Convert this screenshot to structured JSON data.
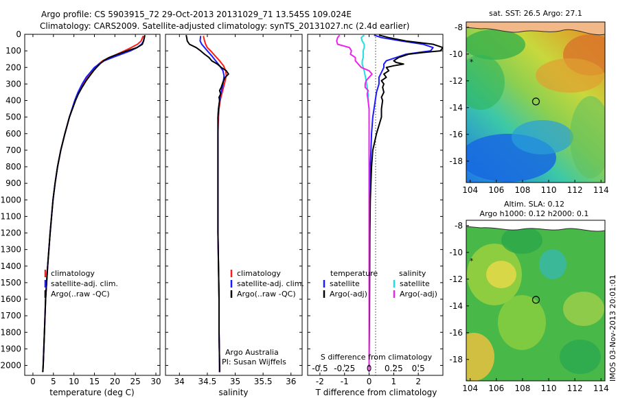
{
  "header": {
    "line1": "Argo profile: CS 5903915_72 29-Oct-2013 20131029_71 13.545S 109.024E",
    "line2": "Climatology: CARS2009. Satellite-adjusted climatology: synTS_20131027.nc (2.4d earlier)"
  },
  "depth_ticks": [
    "0",
    "100",
    "200",
    "300",
    "400",
    "500",
    "600",
    "700",
    "800",
    "900",
    "1000",
    "1100",
    "1200",
    "1300",
    "1400",
    "1500",
    "1600",
    "1700",
    "1800",
    "1900",
    "2000"
  ],
  "colors": {
    "climatology": "#ff1a1a",
    "satellite": "#1a1aff",
    "argo": "#000000",
    "salinity_sat": "#22dddd",
    "salinity_argo": "#ee22ee"
  },
  "chart_data": [
    {
      "type": "line",
      "id": "temperature",
      "xlabel": "temperature (deg C)",
      "ylabel": "depth (m)",
      "xlim": [
        -2,
        31
      ],
      "ylim": [
        2060,
        0
      ],
      "xticks": [
        "0",
        "5",
        "10",
        "15",
        "20",
        "25",
        "30"
      ],
      "legend": {
        "position": "lower-middle",
        "entries": [
          "climatology",
          "satellite-adj. clim.",
          "Argo(..raw -QC)"
        ]
      },
      "series": [
        {
          "name": "climatology",
          "color": "#ff1a1a",
          "depth": [
            10,
            40,
            60,
            80,
            100,
            120,
            140,
            160,
            180,
            200,
            230,
            260,
            300,
            350,
            400,
            500,
            600,
            700,
            800,
            900,
            1000,
            1200,
            1400,
            1600,
            1800,
            2000,
            2040
          ],
          "value": [
            26.9,
            26.4,
            25.5,
            24.0,
            22.3,
            20.5,
            18.6,
            17.0,
            16.0,
            15.2,
            14.3,
            13.4,
            12.3,
            11.2,
            10.3,
            8.9,
            7.8,
            6.8,
            6.0,
            5.4,
            4.9,
            4.2,
            3.6,
            3.1,
            2.8,
            2.5,
            2.4
          ]
        },
        {
          "name": "satellite-adj. clim.",
          "color": "#1a1aff",
          "depth": [
            10,
            40,
            60,
            80,
            100,
            120,
            140,
            160,
            180,
            200,
            230,
            260,
            300,
            350,
            400,
            500,
            600,
            700,
            800,
            900,
            1000,
            1200,
            1400,
            1600,
            1800,
            2000,
            2040
          ],
          "value": [
            27.2,
            27.0,
            26.5,
            25.4,
            23.8,
            21.6,
            19.4,
            17.4,
            16.1,
            15.0,
            14.0,
            13.0,
            12.0,
            11.0,
            10.2,
            8.9,
            7.8,
            6.8,
            6.0,
            5.4,
            4.9,
            4.2,
            3.6,
            3.1,
            2.8,
            2.5,
            2.4
          ]
        },
        {
          "name": "Argo(..raw -QC)",
          "color": "#000000",
          "depth": [
            5,
            20,
            40,
            60,
            80,
            100,
            120,
            140,
            160,
            180,
            200,
            220,
            250,
            280,
            320,
            360,
            400,
            500,
            600,
            700,
            800,
            900,
            1000,
            1200,
            1400,
            1600,
            1800,
            2000,
            2040
          ],
          "value": [
            27.3,
            27.2,
            27.0,
            26.7,
            25.4,
            23.0,
            20.7,
            18.6,
            17.2,
            16.3,
            15.5,
            14.8,
            13.9,
            13.0,
            12.0,
            11.1,
            10.4,
            8.9,
            7.8,
            6.8,
            6.0,
            5.4,
            4.9,
            4.2,
            3.6,
            3.1,
            2.8,
            2.5,
            2.4
          ]
        }
      ]
    },
    {
      "type": "line",
      "id": "salinity",
      "xlabel": "salinity",
      "ylabel": "depth (m)",
      "xlim": [
        33.75,
        36.2
      ],
      "ylim": [
        2060,
        0
      ],
      "xticks": [
        "34",
        "34.5",
        "35",
        "35.5",
        "36"
      ],
      "legend": {
        "position": "lower-middle",
        "entries": [
          "climatology",
          "satellite-adj. clim.",
          "Argo(..raw -QC)"
        ]
      },
      "annotation": {
        "line1": "Argo Australia",
        "line2": "PI: Susan Wijffels"
      },
      "series": [
        {
          "name": "climatology",
          "color": "#ff1a1a",
          "depth": [
            10,
            40,
            60,
            80,
            100,
            130,
            160,
            190,
            220,
            250,
            280,
            320,
            360,
            400,
            450,
            500,
            600,
            700,
            800,
            900,
            1000,
            1200,
            1400,
            1600,
            1800,
            2000,
            2040
          ],
          "value": [
            34.43,
            34.45,
            34.47,
            34.5,
            34.56,
            34.64,
            34.72,
            34.79,
            34.83,
            34.84,
            34.82,
            34.79,
            34.76,
            34.73,
            34.71,
            34.7,
            34.69,
            34.69,
            34.69,
            34.69,
            34.69,
            34.69,
            34.7,
            34.71,
            34.71,
            34.72,
            34.72
          ]
        },
        {
          "name": "satellite-adj. clim.",
          "color": "#1a1aff",
          "depth": [
            10,
            40,
            60,
            80,
            100,
            130,
            160,
            190,
            220,
            250,
            280,
            320,
            360,
            400,
            450,
            500,
            600,
            700,
            800,
            900,
            1000,
            1200,
            1400,
            1600,
            1800,
            2000,
            2040
          ],
          "value": [
            34.38,
            34.37,
            34.4,
            34.45,
            34.5,
            34.58,
            34.65,
            34.72,
            34.78,
            34.8,
            34.79,
            34.77,
            34.74,
            34.72,
            34.7,
            34.69,
            34.69,
            34.69,
            34.69,
            34.69,
            34.69,
            34.69,
            34.7,
            34.71,
            34.71,
            34.72,
            34.72
          ]
        },
        {
          "name": "Argo(..raw -QC)",
          "color": "#000000",
          "depth": [
            5,
            20,
            40,
            60,
            80,
            100,
            120,
            140,
            160,
            180,
            200,
            220,
            240,
            260,
            280,
            300,
            320,
            340,
            360,
            380,
            400,
            450,
            500,
            600,
            700,
            800,
            900,
            1000,
            1200,
            1400,
            1600,
            1800,
            2000,
            2040
          ],
          "value": [
            34.12,
            34.13,
            34.14,
            34.18,
            34.3,
            34.38,
            34.45,
            34.53,
            34.58,
            34.68,
            34.75,
            34.84,
            34.88,
            34.82,
            34.79,
            34.77,
            34.75,
            34.72,
            34.74,
            34.71,
            34.72,
            34.7,
            34.69,
            34.69,
            34.69,
            34.69,
            34.69,
            34.69,
            34.69,
            34.7,
            34.71,
            34.71,
            34.72,
            34.72
          ]
        }
      ]
    },
    {
      "type": "line",
      "id": "difference",
      "xlabel": "T difference from climatology",
      "xlabel_top": "S difference from climatology",
      "ylabel": "depth (m)",
      "xlim": [
        -2.5,
        3.0
      ],
      "ylim": [
        2060,
        0
      ],
      "xticks": [
        "-2",
        "-1",
        "0",
        "1",
        "2"
      ],
      "xticks_top": [
        "-0.5",
        "-0.25",
        "0",
        "0.25",
        "0.5"
      ],
      "legend": {
        "position": "lower-middle",
        "temperature_header": "temperature",
        "salinity_header": "salinity",
        "entries": [
          "satellite",
          "Argo(-adj)",
          "satellite",
          "Argo(-adj)"
        ]
      },
      "series": [
        {
          "name": "temperature satellite",
          "color": "#1a1aff",
          "depth": [
            5,
            20,
            40,
            60,
            80,
            100,
            110,
            120,
            140,
            160,
            180,
            200,
            230,
            260,
            300,
            350,
            400,
            500,
            600,
            800,
            1000,
            1200,
            1500,
            1800,
            2000,
            2040
          ],
          "value": [
            0.2,
            0.5,
            1.3,
            2.2,
            2.6,
            2.5,
            2.0,
            1.5,
            1.1,
            0.7,
            0.6,
            0.6,
            0.5,
            0.4,
            0.4,
            0.3,
            0.25,
            0.15,
            0.1,
            0.05,
            0.02,
            0.01,
            0.0,
            0.0,
            0.0,
            0.0
          ]
        },
        {
          "name": "temperature Argo(-adj)",
          "color": "#000000",
          "depth": [
            5,
            20,
            40,
            60,
            80,
            100,
            110,
            120,
            140,
            160,
            170,
            180,
            190,
            200,
            220,
            240,
            260,
            280,
            300,
            320,
            350,
            380,
            400,
            450,
            500,
            550,
            600,
            700,
            800,
            1000,
            1200,
            1500,
            1800,
            2000,
            2040
          ],
          "value": [
            0.4,
            0.8,
            1.5,
            2.6,
            3.0,
            2.9,
            2.2,
            1.6,
            1.2,
            1.0,
            1.1,
            1.4,
            1.0,
            0.7,
            0.8,
            0.6,
            0.7,
            0.5,
            0.6,
            0.55,
            0.6,
            0.5,
            0.55,
            0.5,
            0.5,
            0.4,
            0.3,
            0.15,
            0.1,
            0.05,
            0.03,
            0.02,
            0.01,
            0.0,
            0.0
          ]
        },
        {
          "name": "salinity satellite",
          "color": "#22dddd",
          "depth": [
            5,
            20,
            40,
            60,
            80,
            100,
            120,
            140,
            160,
            180,
            200,
            220,
            250,
            280,
            320,
            360,
            400,
            450,
            500,
            600,
            800,
            1000,
            1500,
            2000,
            2040
          ],
          "value": [
            -0.05,
            -0.08,
            -0.07,
            -0.05,
            -0.05,
            -0.06,
            -0.06,
            -0.06,
            -0.07,
            -0.07,
            -0.06,
            -0.05,
            -0.04,
            -0.03,
            -0.02,
            -0.01,
            -0.01,
            0.0,
            0.0,
            0.0,
            0.0,
            0.0,
            0.0,
            0.0,
            0.0
          ]
        },
        {
          "name": "salinity Argo(-adj)",
          "color": "#ee22ee",
          "depth": [
            5,
            20,
            40,
            60,
            80,
            100,
            120,
            140,
            160,
            180,
            200,
            220,
            240,
            260,
            280,
            300,
            320,
            340,
            360,
            400,
            450,
            500,
            600,
            800,
            1000,
            1500,
            2000,
            2040
          ],
          "value": [
            -0.3,
            -0.32,
            -0.33,
            -0.32,
            -0.2,
            -0.18,
            -0.19,
            -0.14,
            -0.14,
            -0.11,
            -0.08,
            0.0,
            0.03,
            0.0,
            -0.03,
            -0.04,
            -0.04,
            -0.01,
            -0.02,
            -0.01,
            0.0,
            0.0,
            0.0,
            0.0,
            0.0,
            0.0,
            0.0,
            0.0
          ]
        }
      ]
    },
    {
      "type": "heatmap",
      "id": "sst_map",
      "title": "sat. SST: 26.5 Argo: 27.1",
      "xlim": [
        103.7,
        114.3
      ],
      "ylim": [
        -19.6,
        -7.6
      ],
      "xticks": [
        "104",
        "106",
        "108",
        "110",
        "112",
        "114"
      ],
      "yticks": [
        "-8",
        "-10",
        "-12",
        "-14",
        "-16",
        "-18"
      ],
      "argo_position": {
        "lon": 109.024,
        "lat": -13.545
      }
    },
    {
      "type": "heatmap",
      "id": "sla_map",
      "title": "Altim. SLA: 0.12",
      "subtitle": "Argo h1000: 0.12 h2000: 0.1",
      "xlim": [
        103.7,
        114.3
      ],
      "ylim": [
        -19.6,
        -7.6
      ],
      "xticks": [
        "104",
        "106",
        "108",
        "110",
        "112",
        "114"
      ],
      "yticks": [
        "-8",
        "-10",
        "-12",
        "-14",
        "-16",
        "-18"
      ],
      "argo_position": {
        "lon": 109.024,
        "lat": -13.545
      }
    }
  ],
  "footer": {
    "credit": "IMOS 03-Nov-2013 20:01:01"
  }
}
